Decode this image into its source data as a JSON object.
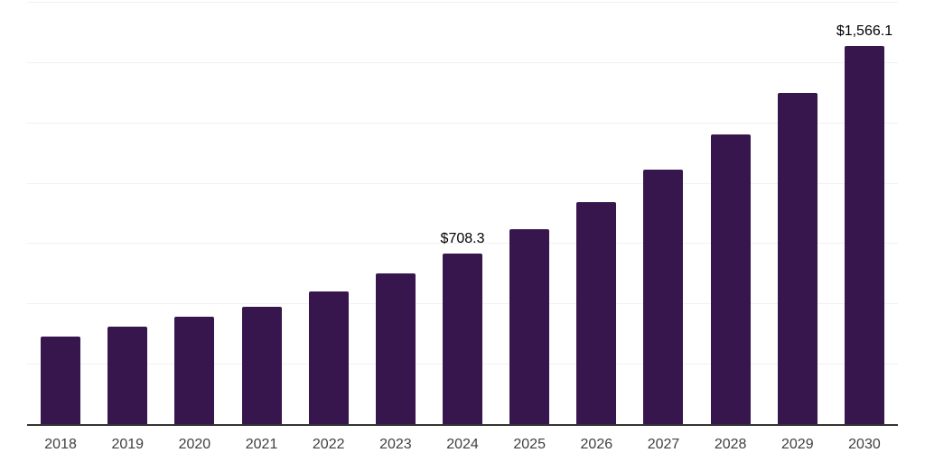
{
  "chart_data": {
    "type": "bar",
    "title": "",
    "xlabel": "",
    "ylabel": "",
    "categories": [
      "2018",
      "2019",
      "2020",
      "2021",
      "2022",
      "2023",
      "2024",
      "2025",
      "2026",
      "2027",
      "2028",
      "2029",
      "2030"
    ],
    "values": [
      362.7,
      403.8,
      445.0,
      486.1,
      549.7,
      624.5,
      708.3,
      807.7,
      919.9,
      1054.5,
      1200.3,
      1372.3,
      1566.1
    ],
    "data_labels": [
      "",
      "",
      "",
      "",
      "",
      "",
      "$708.3",
      "",
      "",
      "",
      "",
      "",
      "$1,566.1"
    ],
    "ylim": [
      0,
      1750
    ],
    "gridline_interval": 250,
    "grid": "horizontal",
    "legend": "none"
  },
  "colors": {
    "bar": "#37154D",
    "gridline": "#F1F1F1",
    "axis": "#333333",
    "data_label": "#000000",
    "tick_label": "#404040",
    "background": "#FFFFFF"
  }
}
